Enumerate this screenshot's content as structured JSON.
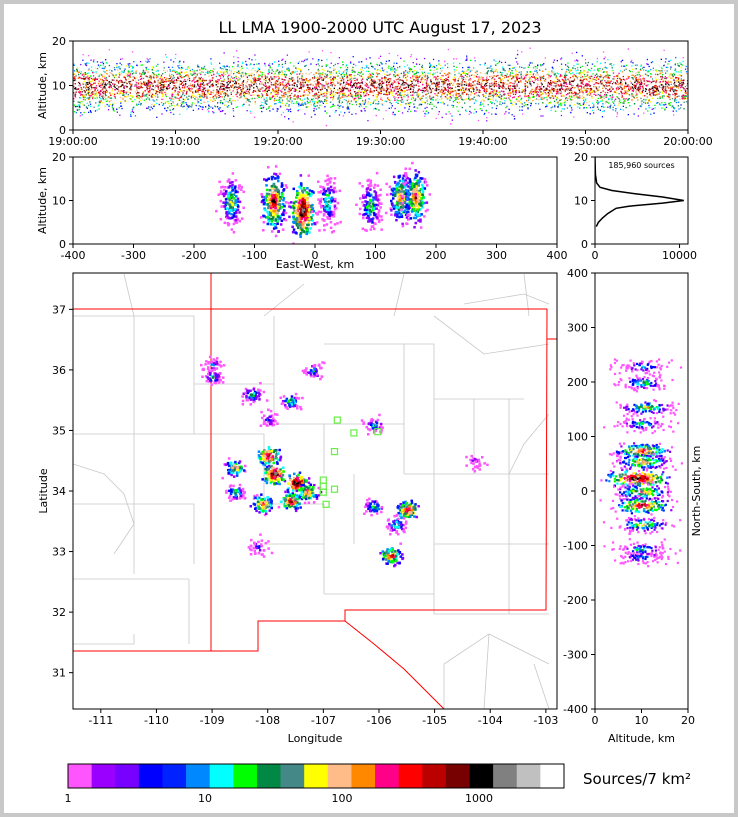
{
  "chart_data": [
    {
      "name": "time-height",
      "type": "heatmap",
      "title": "LL LMA 1900-2000 UTC August 17, 2023",
      "ylabel": "Altitude, km",
      "xlim": [
        "19:00:00",
        "20:00:00"
      ],
      "ylim": [
        0,
        20
      ],
      "x_ticks": [
        "19:00:00",
        "19:10:00",
        "19:20:00",
        "19:30:00",
        "19:40:00",
        "19:50:00",
        "20:00:00"
      ],
      "y_ticks": [
        0,
        10,
        20
      ],
      "peak_altitude_km": 10
    },
    {
      "name": "east-west-altitude",
      "type": "heatmap",
      "xlabel": "East-West, km",
      "ylabel": "Altitude, km",
      "xlim": [
        -400,
        400
      ],
      "ylim": [
        0,
        20
      ],
      "x_ticks": [
        -400,
        -300,
        -200,
        -100,
        0,
        100,
        200,
        300,
        400
      ],
      "y_ticks": [
        0,
        10,
        20
      ],
      "clusters": [
        {
          "x": -140,
          "z": 10,
          "intensity": 0.6
        },
        {
          "x": -70,
          "z": 10,
          "intensity": 0.9
        },
        {
          "x": -22,
          "z": 8,
          "intensity": 1.0
        },
        {
          "x": 20,
          "z": 10,
          "intensity": 0.5
        },
        {
          "x": 90,
          "z": 9,
          "intensity": 0.55
        },
        {
          "x": 140,
          "z": 11,
          "intensity": 0.75
        },
        {
          "x": 165,
          "z": 11,
          "intensity": 0.8
        }
      ]
    },
    {
      "name": "altitude-histogram",
      "type": "line",
      "annotation": "185,960 sources",
      "xlim": [
        0,
        11000
      ],
      "ylim": [
        0,
        20
      ],
      "x_ticks": [
        0,
        10000
      ],
      "y_ticks": [
        0,
        10,
        20
      ],
      "points": [
        [
          0,
          20
        ],
        [
          50,
          16
        ],
        [
          200,
          14
        ],
        [
          600,
          13
        ],
        [
          2000,
          12.3
        ],
        [
          5000,
          11.5
        ],
        [
          8000,
          10.8
        ],
        [
          10500,
          10
        ],
        [
          8000,
          9.4
        ],
        [
          4000,
          8.7
        ],
        [
          2500,
          8.2
        ],
        [
          1500,
          7
        ],
        [
          900,
          6
        ],
        [
          400,
          5
        ],
        [
          150,
          4
        ]
      ]
    },
    {
      "name": "plan-view",
      "type": "heatmap",
      "xlabel": "Longitude",
      "ylabel": "Latitude",
      "xlim": [
        -111.5,
        -102.8
      ],
      "ylim": [
        30.4,
        37.6
      ],
      "x_ticks": [
        -111,
        -110,
        -109,
        -108,
        -107,
        -106,
        -105,
        -104,
        -103
      ],
      "y_ticks": [
        31,
        32,
        33,
        34,
        35,
        36,
        37
      ],
      "clusters": [
        {
          "lon": -109.0,
          "lat": 36.1,
          "intensity": 0.3
        },
        {
          "lon": -109.0,
          "lat": 35.9,
          "intensity": 0.4
        },
        {
          "lon": -108.3,
          "lat": 35.6,
          "intensity": 0.5
        },
        {
          "lon": -107.6,
          "lat": 35.5,
          "intensity": 0.5
        },
        {
          "lon": -107.2,
          "lat": 36.0,
          "intensity": 0.4
        },
        {
          "lon": -106.1,
          "lat": 35.1,
          "intensity": 0.4
        },
        {
          "lon": -108.0,
          "lat": 35.2,
          "intensity": 0.3
        },
        {
          "lon": -108.0,
          "lat": 34.6,
          "intensity": 0.9
        },
        {
          "lon": -108.6,
          "lat": 34.4,
          "intensity": 0.7
        },
        {
          "lon": -107.9,
          "lat": 34.3,
          "intensity": 1.0
        },
        {
          "lon": -107.5,
          "lat": 34.15,
          "intensity": 1.0
        },
        {
          "lon": -107.3,
          "lat": 34.0,
          "intensity": 0.8
        },
        {
          "lon": -108.6,
          "lat": 34.0,
          "intensity": 0.5
        },
        {
          "lon": -108.1,
          "lat": 33.8,
          "intensity": 0.8
        },
        {
          "lon": -107.6,
          "lat": 33.85,
          "intensity": 0.85
        },
        {
          "lon": -108.2,
          "lat": 33.1,
          "intensity": 0.3
        },
        {
          "lon": -106.1,
          "lat": 33.75,
          "intensity": 0.5
        },
        {
          "lon": -105.5,
          "lat": 33.7,
          "intensity": 0.85
        },
        {
          "lon": -105.7,
          "lat": 33.45,
          "intensity": 0.5
        },
        {
          "lon": -105.8,
          "lat": 32.95,
          "intensity": 0.8
        },
        {
          "lon": -104.3,
          "lat": 34.5,
          "intensity": 0.2
        }
      ],
      "stations": [
        [
          -106.75,
          35.17
        ],
        [
          -106.45,
          34.96
        ],
        [
          -106.02,
          34.98
        ],
        [
          -106.8,
          34.65
        ],
        [
          -107.0,
          34.18
        ],
        [
          -107.0,
          34.08
        ],
        [
          -107.0,
          33.98
        ],
        [
          -106.8,
          34.03
        ],
        [
          -106.95,
          33.78
        ]
      ]
    },
    {
      "name": "altitude-north-south",
      "type": "heatmap",
      "xlabel": "Altitude, km",
      "ylabel": "North-South, km",
      "xlim": [
        0,
        20
      ],
      "ylim": [
        -400,
        400
      ],
      "x_ticks": [
        0,
        10,
        20
      ],
      "y_ticks": [
        -400,
        -300,
        -200,
        -100,
        0,
        100,
        200,
        300,
        400
      ],
      "clusters": [
        {
          "y": 230,
          "z": 10,
          "intensity": 0.4
        },
        {
          "y": 200,
          "z": 10,
          "intensity": 0.5
        },
        {
          "y": 155,
          "z": 11,
          "intensity": 0.6
        },
        {
          "y": 125,
          "z": 10,
          "intensity": 0.45
        },
        {
          "y": 75,
          "z": 10,
          "intensity": 0.8
        },
        {
          "y": 55,
          "z": 10,
          "intensity": 0.7
        },
        {
          "y": 25,
          "z": 9,
          "intensity": 1.0
        },
        {
          "y": 0,
          "z": 10,
          "intensity": 0.7
        },
        {
          "y": -25,
          "z": 10,
          "intensity": 0.85
        },
        {
          "y": -60,
          "z": 10,
          "intensity": 0.6
        },
        {
          "y": -105,
          "z": 10,
          "intensity": 0.45
        },
        {
          "y": -120,
          "z": 10,
          "intensity": 0.4
        }
      ]
    }
  ],
  "colorbar": {
    "label": "Sources/7 km²",
    "ticks": [
      "1",
      "10",
      "100",
      "1000"
    ],
    "colors": [
      "#ff55ff",
      "#9900ff",
      "#7700ff",
      "#0000ff",
      "#0022ff",
      "#0088ff",
      "#00ffff",
      "#00ff00",
      "#008844",
      "#448888",
      "#ffff00",
      "#ffbb88",
      "#ff8800",
      "#ff0088",
      "#ff0000",
      "#bb0000",
      "#770000",
      "#000000",
      "#808080",
      "#c0c0c0",
      "#ffffff"
    ]
  }
}
